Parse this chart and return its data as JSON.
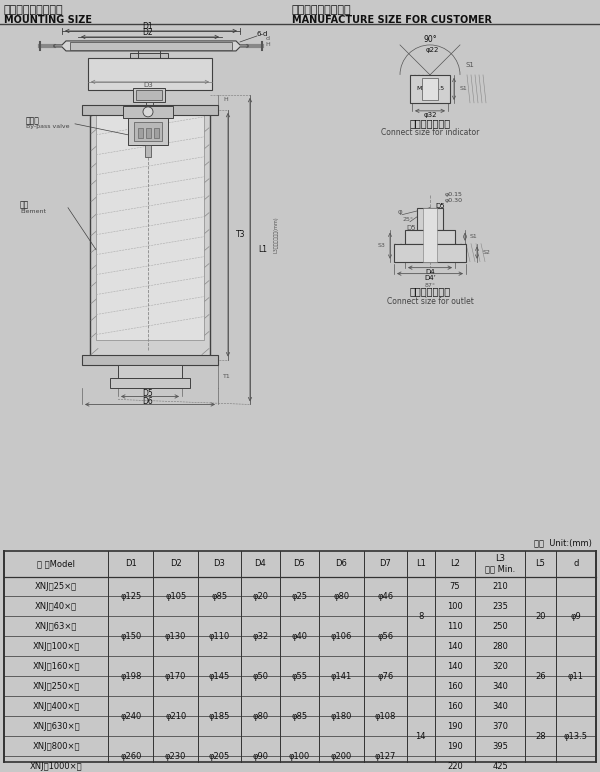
{
  "title_left_cn": "（四）安装外型尺寸",
  "title_left_en": "MOUNTING SIZE",
  "title_right_cn": "（五）用户加工尺寸",
  "title_right_en": "MANUFACTURE SIZE FOR CUSTOMER",
  "unit_text": "单位  Unit:(mm)",
  "label_bypass_cn": "旁通阀",
  "label_bypass_en": "By-pass valve",
  "label_element_cn": "滤芯",
  "label_element_en": "Element",
  "label_indicator_cn": "发讯器接口尺寸",
  "label_indicator_en": "Connect size for indicator",
  "label_outlet_cn": "出油口接口尺寸",
  "label_outlet_en": "Connect size for outlet",
  "bg_color": "#c8c8c8",
  "table_bg": "#ffffff",
  "line_color": "#404040",
  "text_color": "#111111",
  "table_headers": [
    "型 号Model",
    "D1",
    "D2",
    "D3",
    "D4",
    "D5",
    "D6",
    "D7",
    "L1",
    "L2",
    "L3\n最小 Min.",
    "L5",
    "d"
  ],
  "col_models": [
    "XNJ－25×＊",
    "XNJ－40×＊",
    "XNJ－63×＊",
    "XNJ－100×＊",
    "XNJ－160×＊",
    "XNJ－250×＊",
    "XNJ－400×＊",
    "XNJ－630×＊",
    "XNJ－800×＊",
    "XNJ－1000×＊"
  ],
  "col_d1": [
    "φ125",
    "",
    "φ150",
    "",
    "φ198",
    "",
    "φ240",
    "",
    "φ260",
    ""
  ],
  "col_d2": [
    "φ105",
    "",
    "φ130",
    "",
    "φ170",
    "",
    "φ210",
    "",
    "φ230",
    ""
  ],
  "col_d3": [
    "φ85",
    "",
    "φ110",
    "",
    "φ145",
    "",
    "φ185",
    "",
    "φ205",
    ""
  ],
  "col_d4": [
    "φ20",
    "",
    "φ32",
    "",
    "φ50",
    "",
    "φ80",
    "",
    "φ90",
    ""
  ],
  "col_d5": [
    "φ25",
    "",
    "φ40",
    "",
    "φ55",
    "",
    "φ85",
    "",
    "φ100",
    ""
  ],
  "col_d6": [
    "φ80",
    "",
    "φ106",
    "",
    "φ141",
    "",
    "φ180",
    "",
    "φ200",
    ""
  ],
  "col_d7": [
    "φ46",
    "",
    "φ56",
    "",
    "φ76",
    "",
    "φ108",
    "",
    "φ127",
    ""
  ],
  "col_l1": [
    "",
    "",
    "",
    "",
    "",
    "",
    "14",
    "",
    "",
    ""
  ],
  "col_l2": [
    "75",
    "100",
    "110",
    "140",
    "140",
    "160",
    "160",
    "190",
    "190",
    "220"
  ],
  "col_l3": [
    "210",
    "235",
    "250",
    "280",
    "320",
    "340",
    "340",
    "370",
    "395",
    "425"
  ],
  "col_l5": [
    "20",
    "",
    "",
    "",
    "26",
    "",
    "28",
    "",
    "",
    ""
  ],
  "col_d_last": [
    "φ9",
    "",
    "",
    "",
    "φ11",
    "",
    "φ13.5",
    "",
    "",
    ""
  ],
  "l1_group1": "8",
  "l1_group2": "14",
  "l5_groups": [
    "20",
    "26",
    "28"
  ],
  "d_groups": [
    "φ9",
    "φ11",
    "φ13.5"
  ]
}
